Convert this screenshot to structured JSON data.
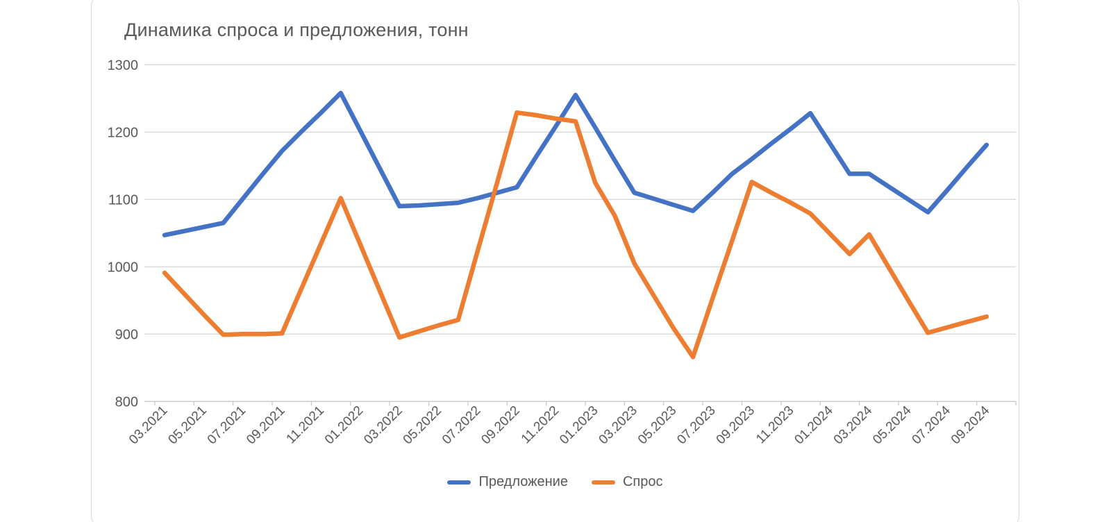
{
  "chart_data": {
    "type": "line",
    "title": "Динамика спроса и предложения, тонн",
    "x_monthly": [
      "03.2021",
      "04.2021",
      "05.2021",
      "06.2021",
      "07.2021",
      "08.2021",
      "09.2021",
      "10.2021",
      "11.2021",
      "12.2021",
      "01.2022",
      "02.2022",
      "03.2022",
      "04.2022",
      "05.2022",
      "06.2022",
      "07.2022",
      "08.2022",
      "09.2022",
      "10.2022",
      "11.2022",
      "12.2022",
      "01.2023",
      "02.2023",
      "03.2023",
      "04.2023",
      "05.2023",
      "06.2023",
      "07.2023",
      "08.2023",
      "09.2023",
      "10.2023",
      "11.2023",
      "12.2023",
      "01.2024",
      "02.2024",
      "03.2024",
      "04.2024",
      "05.2024",
      "06.2024",
      "07.2024",
      "08.2024",
      "09.2024"
    ],
    "x_axis_labels_shown": [
      "03.2021",
      "05.2021",
      "07.2021",
      "09.2021",
      "11.2021",
      "01.2022",
      "03.2022",
      "05.2022",
      "07.2022",
      "09.2022",
      "11.2022",
      "01.2023",
      "03.2023",
      "05.2023",
      "07.2023",
      "09.2023",
      "11.2023",
      "01.2024",
      "03.2024",
      "05.2024",
      "07.2024",
      "09.2024"
    ],
    "series": [
      {
        "name": "Предложение",
        "color": "#4472C4",
        "values": [
          1047,
          1053,
          1059,
          1065,
          1101,
          1137,
          1172,
          1201,
          1229,
          1258,
          1202,
          1146,
          1090,
          1091,
          1093,
          1095,
          1102,
          1110,
          1118,
          1164,
          1209,
          1255,
          1207,
          1158,
          1110,
          1101,
          1092,
          1083,
          1110,
          1138,
          1160,
          1183,
          1205,
          1228,
          1183,
          1138,
          1138,
          1119,
          1100,
          1081,
          1114,
          1148,
          1181
        ]
      },
      {
        "name": "Спрос",
        "color": "#ED7D31",
        "values": [
          991,
          960,
          929,
          899,
          900,
          900,
          901,
          968,
          1035,
          1102,
          1033,
          964,
          895,
          904,
          913,
          921,
          1024,
          1126,
          1229,
          1225,
          1220,
          1216,
          1125,
          1076,
          1005,
          957,
          909,
          866,
          953,
          1039,
          1126,
          1110,
          1095,
          1079,
          1049,
          1019,
          1048,
          999,
          950,
          902,
          910,
          918,
          926
        ]
      }
    ],
    "ylim": [
      800,
      1300
    ],
    "y_ticks": [
      1300,
      1200,
      1100,
      1000,
      900,
      800
    ],
    "grid": "horizontal-only",
    "legend_position": "bottom",
    "x_label_rotation_deg": 45
  },
  "colors": {
    "gridline": "#d9d9d9",
    "axis_line": "#c9c9c9",
    "tick_text": "#595959",
    "title_text": "#595959",
    "panel_border": "#d9d9d9",
    "background": "#ffffff"
  }
}
